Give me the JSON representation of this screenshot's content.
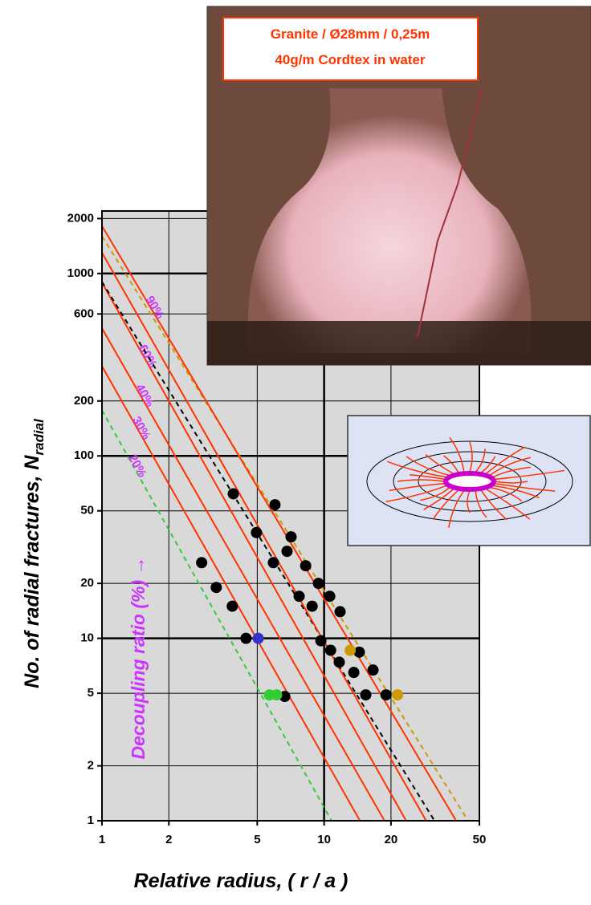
{
  "chart_data": {
    "type": "line",
    "xlabel": "Relative radius, ( r / a )",
    "ylabel": "No. of radial fractures, N",
    "ylabel_subscript": "radial",
    "annotation": "Decoupling ratio (%)  →",
    "photo_caption": [
      "Granite / Ø28mm / 0,25m",
      "40g/m Cordtex in water"
    ],
    "log_scale": true,
    "grid": true,
    "xlim": [
      1,
      50
    ],
    "ylim": [
      1,
      2200
    ],
    "xticks": [
      1,
      2,
      5,
      10,
      20,
      50
    ],
    "yticks": [
      1,
      2,
      5,
      10,
      20,
      50,
      100,
      200,
      600,
      1000,
      2000
    ],
    "series": [
      {
        "type": "line",
        "name": "20%",
        "color": "#33cc33",
        "dashed": true,
        "x": [
          1,
          10.8
        ],
        "values": [
          178,
          1
        ]
      },
      {
        "type": "line",
        "name": "30%",
        "color": "#ff3300",
        "x": [
          1,
          14.5
        ],
        "values": [
          310,
          1
        ]
      },
      {
        "type": "line",
        "name": "40%",
        "color": "#ff3300",
        "x": [
          1,
          18.7
        ],
        "values": [
          500,
          1
        ]
      },
      {
        "type": "line",
        "name": "60%",
        "color": "#ff3300",
        "x": [
          1,
          23.4
        ],
        "values": [
          890,
          1
        ]
      },
      {
        "type": "line",
        "color": "#000000",
        "dashed": true,
        "x": [
          1,
          31.4
        ],
        "values": [
          900,
          1
        ]
      },
      {
        "type": "line",
        "color": "#ff3300",
        "x": [
          1,
          28.8
        ],
        "values": [
          1300,
          1
        ]
      },
      {
        "type": "line",
        "color": "#cc9900",
        "dashed": true,
        "x": [
          1,
          44.5
        ],
        "values": [
          1600,
          1
        ]
      },
      {
        "type": "line",
        "name": "90%",
        "color": "#ff3300",
        "x": [
          1,
          39.3
        ],
        "values": [
          1820,
          1
        ]
      },
      {
        "type": "scatter",
        "color": "#000000",
        "x": [
          3.9,
          6.01,
          4.96,
          7.1,
          5.91,
          6.81,
          8.26,
          2.81,
          3.27,
          7.72,
          8.83,
          3.86,
          9.43,
          10.6,
          11.8,
          4.45,
          9.67,
          10.7,
          11.7,
          14.4,
          13.6,
          16.6,
          15.4,
          19.0,
          6.65
        ],
        "values": [
          62,
          54,
          38,
          36,
          26,
          30,
          25,
          26,
          19,
          17,
          15,
          15,
          20,
          17,
          14,
          10,
          9.7,
          8.6,
          7.4,
          8.4,
          6.5,
          6.7,
          4.9,
          4.9,
          4.8
        ]
      },
      {
        "type": "scatter",
        "color": "#3333cc",
        "x": [
          5.05
        ],
        "values": [
          10
        ]
      },
      {
        "type": "scatter",
        "color": "#33cc33",
        "x": [
          5.67,
          6.11
        ],
        "values": [
          4.9,
          4.9
        ]
      },
      {
        "type": "scatter",
        "color": "#cc9900",
        "x": [
          13.1,
          21.4
        ],
        "values": [
          8.6,
          4.9
        ]
      }
    ]
  }
}
